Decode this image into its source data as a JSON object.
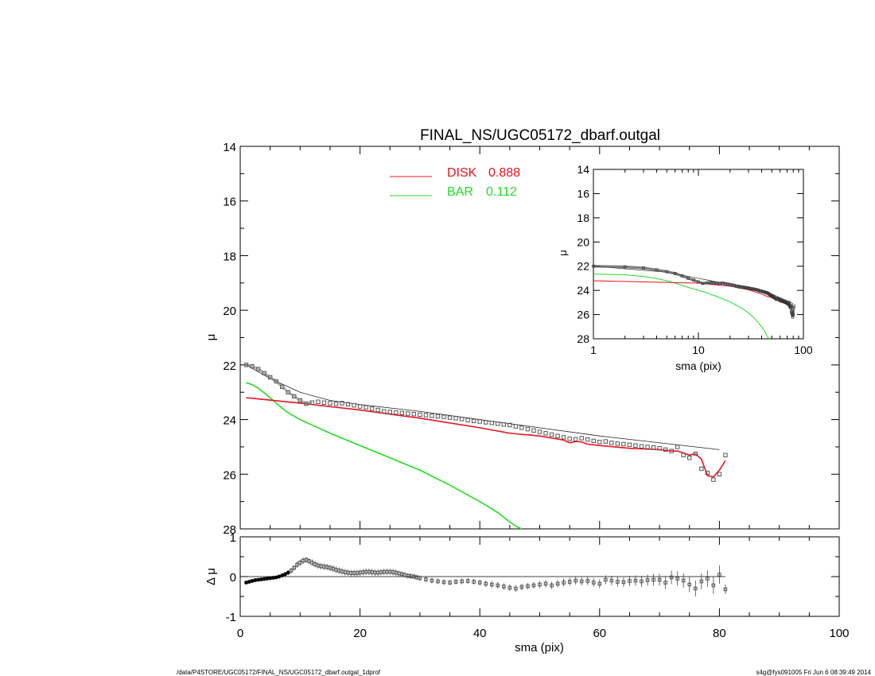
{
  "title": "FINAL_NS/UGC05172_dbarf.outgal",
  "footer": {
    "path": "/data/P4STORE/UGC05172/FINAL_NS/UGC05172_dbarf.outgal_1dprof",
    "stamp": "s4g@fys091005  Fri Jun  6 08:39:49 2014"
  },
  "legend": [
    {
      "label": "DISK",
      "value": "0.888",
      "color": "#e8141e"
    },
    {
      "label": "BAR",
      "value": "0.112",
      "color": "#22dd22"
    }
  ],
  "colors": {
    "disk": "#e8141e",
    "bar": "#22dd22",
    "data": "#555555",
    "model": "#222222"
  },
  "chart_data": [
    {
      "type": "line",
      "name": "main profile",
      "xlabel": "",
      "ylabel": "μ",
      "xlim": [
        0,
        100
      ],
      "ylim": [
        28,
        14
      ],
      "yticks": [
        "14",
        "16",
        "18",
        "20",
        "22",
        "24",
        "26",
        "28"
      ],
      "observed_mu": {
        "x": [
          1,
          2,
          3,
          4,
          5,
          6,
          7,
          8,
          9,
          10,
          11,
          12,
          13,
          14,
          15,
          16,
          17,
          18,
          19,
          20,
          21,
          22,
          23,
          24,
          25,
          26,
          27,
          28,
          29,
          30,
          31,
          32,
          33,
          34,
          35,
          36,
          37,
          38,
          39,
          40,
          41,
          42,
          43,
          44,
          45,
          46,
          47,
          48,
          49,
          50,
          51,
          52,
          53,
          54,
          55,
          56,
          57,
          58,
          59,
          60,
          61,
          62,
          63,
          64,
          65,
          66,
          67,
          68,
          69,
          70,
          71,
          72,
          73,
          74,
          75,
          76,
          77,
          78,
          79,
          80,
          81
        ],
        "y": [
          22.0,
          22.05,
          22.15,
          22.3,
          22.45,
          22.6,
          22.8,
          23.0,
          23.15,
          23.3,
          23.42,
          23.38,
          23.35,
          23.38,
          23.4,
          23.42,
          23.4,
          23.44,
          23.48,
          23.52,
          23.55,
          23.6,
          23.65,
          23.7,
          23.72,
          23.74,
          23.76,
          23.78,
          23.8,
          23.82,
          23.84,
          23.86,
          23.88,
          23.9,
          23.93,
          23.95,
          23.98,
          24.02,
          24.05,
          24.07,
          24.1,
          24.12,
          24.15,
          24.18,
          24.2,
          24.25,
          24.3,
          24.35,
          24.4,
          24.45,
          24.5,
          24.55,
          24.6,
          24.65,
          24.7,
          24.72,
          24.68,
          24.73,
          24.78,
          24.82,
          24.8,
          24.85,
          24.88,
          24.9,
          24.92,
          24.95,
          24.98,
          25.0,
          25.02,
          25.05,
          25.1,
          25.15,
          25.0,
          25.3,
          25.4,
          25.25,
          25.8,
          25.95,
          26.2,
          26.0,
          25.3
        ]
      },
      "model_total": {
        "x": [
          1,
          5,
          10,
          15,
          20,
          30,
          40,
          50,
          60,
          70,
          80
        ],
        "y": [
          22.0,
          22.5,
          23.0,
          23.3,
          23.45,
          23.7,
          24.0,
          24.3,
          24.6,
          24.85,
          25.1
        ]
      },
      "series": [
        {
          "name": "DISK",
          "x": [
            1,
            10,
            20,
            30,
            40,
            45,
            50,
            54,
            55,
            56,
            57,
            58,
            60,
            65,
            70,
            72,
            73,
            75,
            76,
            77,
            78,
            79,
            80,
            81
          ],
          "y": [
            23.2,
            23.4,
            23.65,
            23.95,
            24.3,
            24.5,
            24.6,
            24.75,
            24.85,
            24.8,
            24.82,
            24.9,
            24.95,
            25.05,
            25.1,
            25.15,
            25.15,
            25.3,
            25.25,
            25.45,
            26.05,
            26.1,
            25.85,
            25.5
          ]
        },
        {
          "name": "BAR",
          "x": [
            1,
            2,
            3,
            4,
            5,
            6,
            7,
            8,
            10,
            12,
            15,
            20,
            25,
            30,
            35,
            40,
            43,
            45,
            46,
            47
          ],
          "y": [
            22.65,
            22.72,
            22.85,
            23.02,
            23.2,
            23.4,
            23.58,
            23.75,
            24.0,
            24.2,
            24.5,
            24.95,
            25.4,
            25.85,
            26.4,
            27.0,
            27.4,
            27.75,
            27.9,
            28.0
          ]
        }
      ]
    },
    {
      "type": "scatter",
      "name": "residuals",
      "xlabel": "sma (pix)",
      "ylabel": "Δ μ",
      "xlim": [
        0,
        100
      ],
      "ylim": [
        -1,
        1
      ],
      "xticks": [
        "0",
        "20",
        "40",
        "60",
        "80",
        "100"
      ],
      "yticks": [
        "-1",
        "0",
        "1"
      ],
      "x": [
        1,
        1.5,
        2,
        2.5,
        3,
        3.5,
        4,
        4.5,
        5,
        5.5,
        6,
        6.5,
        7,
        7.5,
        8,
        8.5,
        9,
        9.5,
        10,
        10.5,
        11,
        11.5,
        12,
        12.5,
        13,
        13.5,
        14,
        14.5,
        15,
        15.5,
        16,
        16.5,
        17,
        17.5,
        18,
        18.5,
        19,
        19.5,
        20,
        20.5,
        21,
        21.5,
        22,
        22.5,
        23,
        23.5,
        24,
        24.5,
        25,
        25.5,
        26,
        26.5,
        27,
        27.5,
        28,
        28.5,
        29,
        29.5,
        30,
        31,
        32,
        33,
        34,
        35,
        36,
        37,
        38,
        39,
        40,
        41,
        42,
        43,
        44,
        45,
        46,
        47,
        48,
        49,
        50,
        51,
        52,
        53,
        54,
        55,
        56,
        57,
        58,
        59,
        60,
        61,
        62,
        63,
        64,
        65,
        66,
        67,
        68,
        69,
        70,
        71,
        72,
        73,
        74,
        75,
        76,
        77,
        78,
        79,
        80,
        81
      ],
      "y": [
        -0.15,
        -0.13,
        -0.11,
        -0.09,
        -0.08,
        -0.07,
        -0.06,
        -0.05,
        -0.04,
        -0.03,
        -0.02,
        0.0,
        0.03,
        0.06,
        0.1,
        0.15,
        0.22,
        0.3,
        0.35,
        0.4,
        0.42,
        0.39,
        0.35,
        0.31,
        0.28,
        0.26,
        0.25,
        0.24,
        0.22,
        0.2,
        0.17,
        0.15,
        0.13,
        0.11,
        0.1,
        0.09,
        0.09,
        0.09,
        0.1,
        0.11,
        0.12,
        0.12,
        0.11,
        0.1,
        0.1,
        0.11,
        0.12,
        0.12,
        0.12,
        0.11,
        0.1,
        0.08,
        0.06,
        0.04,
        0.02,
        0.01,
        0.0,
        -0.02,
        -0.04,
        -0.07,
        -0.1,
        -0.12,
        -0.14,
        -0.15,
        -0.13,
        -0.12,
        -0.11,
        -0.13,
        -0.15,
        -0.18,
        -0.2,
        -0.22,
        -0.25,
        -0.28,
        -0.3,
        -0.26,
        -0.24,
        -0.22,
        -0.2,
        -0.18,
        -0.22,
        -0.18,
        -0.15,
        -0.13,
        -0.1,
        -0.12,
        -0.11,
        -0.15,
        -0.18,
        -0.08,
        -0.1,
        -0.13,
        -0.14,
        -0.11,
        -0.1,
        -0.12,
        -0.09,
        -0.08,
        -0.08,
        -0.15,
        -0.02,
        -0.05,
        -0.1,
        -0.2,
        -0.3,
        -0.12,
        -0.05,
        -0.22,
        0.05,
        -0.32
      ],
      "err": [
        0.03,
        0.03,
        0.03,
        0.03,
        0.03,
        0.03,
        0.03,
        0.03,
        0.04,
        0.04,
        0.04,
        0.05,
        0.05,
        0.06,
        0.06,
        0.07,
        0.07,
        0.08,
        0.08,
        0.08,
        0.08,
        0.08,
        0.08,
        0.08,
        0.08,
        0.08,
        0.08,
        0.08,
        0.08,
        0.08,
        0.08,
        0.08,
        0.08,
        0.08,
        0.08,
        0.08,
        0.08,
        0.08,
        0.08,
        0.08,
        0.08,
        0.08,
        0.08,
        0.08,
        0.08,
        0.08,
        0.08,
        0.08,
        0.08,
        0.08,
        0.08,
        0.07,
        0.07,
        0.07,
        0.07,
        0.07,
        0.07,
        0.07,
        0.07,
        0.07,
        0.07,
        0.07,
        0.07,
        0.07,
        0.07,
        0.07,
        0.07,
        0.07,
        0.07,
        0.08,
        0.08,
        0.08,
        0.08,
        0.08,
        0.08,
        0.08,
        0.08,
        0.08,
        0.09,
        0.09,
        0.09,
        0.09,
        0.1,
        0.1,
        0.1,
        0.1,
        0.1,
        0.11,
        0.11,
        0.11,
        0.12,
        0.12,
        0.12,
        0.13,
        0.13,
        0.14,
        0.14,
        0.15,
        0.15,
        0.16,
        0.17,
        0.18,
        0.18,
        0.19,
        0.2,
        0.2,
        0.21,
        0.22,
        0.23,
        0.12
      ]
    },
    {
      "type": "line",
      "name": "inset log profile",
      "xscale": "log",
      "xlabel": "sma (pix)",
      "ylabel": "μ",
      "xlim": [
        1,
        100
      ],
      "ylim": [
        28,
        14
      ],
      "xticks": [
        "1",
        "10",
        "100"
      ],
      "yticks": [
        "14",
        "16",
        "18",
        "20",
        "22",
        "24",
        "26",
        "28"
      ]
    }
  ]
}
